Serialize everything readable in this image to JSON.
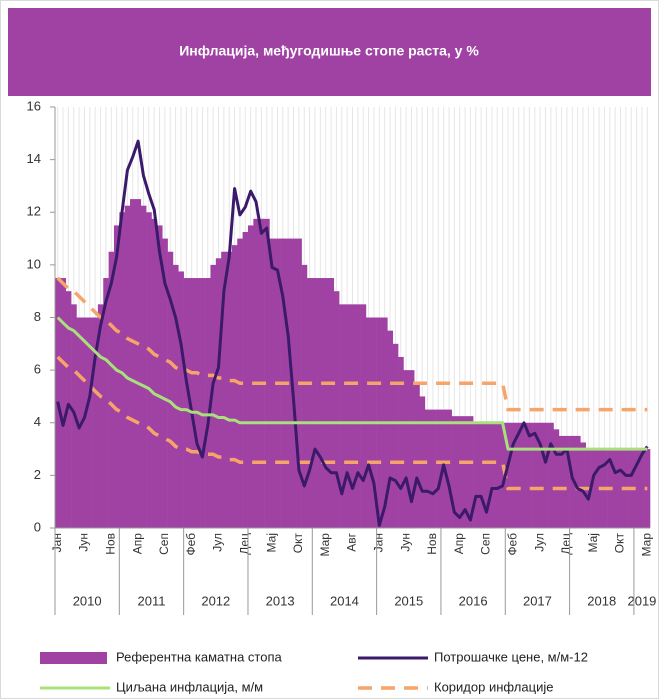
{
  "chart_data": {
    "type": "bar-line",
    "title": "Инфлација, међугодишње стопе раста, у %",
    "categories": [
      "Јан",
      null,
      null,
      null,
      null,
      "Јун",
      null,
      null,
      null,
      null,
      "Нов",
      null,
      null,
      null,
      null,
      "Апр",
      null,
      null,
      null,
      null,
      "Сеп",
      null,
      null,
      null,
      null,
      "Феб",
      null,
      null,
      null,
      null,
      "Јул",
      null,
      null,
      null,
      null,
      "Дец",
      null,
      null,
      null,
      null,
      "Мај",
      null,
      null,
      null,
      null,
      "Окт",
      null,
      null,
      null,
      null,
      "Мар",
      null,
      null,
      null,
      null,
      "Авг",
      null,
      null,
      null,
      null,
      "Јан",
      null,
      null,
      null,
      null,
      "Јун",
      null,
      null,
      null,
      null,
      "Нов",
      null,
      null,
      null,
      null,
      "Апр",
      null,
      null,
      null,
      null,
      "Сеп",
      null,
      null,
      null,
      null,
      "Феб",
      null,
      null,
      null,
      null,
      "Јул",
      null,
      null,
      null,
      null,
      "Дец",
      null,
      null,
      null,
      null,
      "Мај",
      null,
      null,
      null,
      null,
      "Окт",
      null,
      null,
      null,
      null,
      "Мар"
    ],
    "years": [
      "2010",
      "2011",
      "2012",
      "2013",
      "2014",
      "2015",
      "2016",
      "2017",
      "2018",
      "2019"
    ],
    "ylim": [
      0,
      16
    ],
    "yticks": [
      0,
      2,
      4,
      6,
      8,
      10,
      12,
      14,
      16
    ],
    "xgrid": true,
    "series": [
      {
        "name": "Референтна каматна стопа",
        "kind": "bar",
        "color": "#a042a3",
        "values": [
          9.5,
          9.5,
          9.0,
          8.5,
          8.0,
          8.0,
          8.0,
          8.0,
          8.5,
          9.5,
          10.5,
          11.5,
          12.0,
          12.25,
          12.5,
          12.5,
          12.25,
          12.0,
          11.75,
          11.5,
          11.0,
          10.5,
          10.0,
          9.75,
          9.5,
          9.5,
          9.5,
          9.5,
          9.5,
          10.0,
          10.25,
          10.5,
          10.5,
          10.75,
          11.0,
          11.25,
          11.5,
          11.75,
          11.75,
          11.75,
          11.0,
          11.0,
          11.0,
          11.0,
          11.0,
          11.0,
          10.0,
          9.5,
          9.5,
          9.5,
          9.5,
          9.5,
          9.0,
          8.5,
          8.5,
          8.5,
          8.5,
          8.5,
          8.0,
          8.0,
          8.0,
          8.0,
          7.5,
          7.0,
          6.5,
          6.0,
          6.0,
          5.5,
          5.0,
          4.5,
          4.5,
          4.5,
          4.5,
          4.5,
          4.25,
          4.25,
          4.25,
          4.25,
          4.0,
          4.0,
          4.0,
          4.0,
          4.0,
          4.0,
          4.0,
          4.0,
          4.0,
          4.0,
          4.0,
          4.0,
          4.0,
          4.0,
          4.0,
          3.75,
          3.5,
          3.5,
          3.5,
          3.5,
          3.25,
          3.0,
          3.0,
          3.0,
          3.0,
          3.0,
          3.0,
          3.0,
          3.0,
          3.0,
          3.0,
          3.0,
          3.0
        ]
      },
      {
        "name": "Потрошачке цене, м/м-12",
        "kind": "line",
        "color": "#3b1a6b",
        "values": [
          4.8,
          3.9,
          4.7,
          4.4,
          3.8,
          4.2,
          5.0,
          6.5,
          7.7,
          8.6,
          9.3,
          10.3,
          12.0,
          13.6,
          14.1,
          14.7,
          13.4,
          12.7,
          12.1,
          10.5,
          9.3,
          8.7,
          8.0,
          7.0,
          5.6,
          4.4,
          3.2,
          2.7,
          3.9,
          5.5,
          6.1,
          9.0,
          10.3,
          12.9,
          11.9,
          12.2,
          12.8,
          12.4,
          11.2,
          11.4,
          9.9,
          9.8,
          8.8,
          7.3,
          4.9,
          2.2,
          1.6,
          2.2,
          3.0,
          2.7,
          2.3,
          2.1,
          2.1,
          1.3,
          2.1,
          1.5,
          2.1,
          1.8,
          2.4,
          1.7,
          0.1,
          0.8,
          1.9,
          1.8,
          1.5,
          1.9,
          1.0,
          1.9,
          1.4,
          1.4,
          1.3,
          1.5,
          2.4,
          1.6,
          0.6,
          0.4,
          0.7,
          0.3,
          1.2,
          1.2,
          0.6,
          1.5,
          1.5,
          1.6,
          2.4,
          3.2,
          3.6,
          4.0,
          3.5,
          3.6,
          3.2,
          2.5,
          3.2,
          2.8,
          2.8,
          3.0,
          1.9,
          1.5,
          1.4,
          1.1,
          2.0,
          2.3,
          2.4,
          2.6,
          2.1,
          2.2,
          2.0,
          2.0,
          2.4,
          2.8,
          3.1
        ]
      },
      {
        "name": "Циљана инфлација, м/м",
        "kind": "line",
        "color": "#a9e07b",
        "values": [
          8.0,
          7.8,
          7.6,
          7.5,
          7.3,
          7.1,
          6.9,
          6.7,
          6.5,
          6.4,
          6.2,
          6.0,
          5.9,
          5.7,
          5.6,
          5.5,
          5.4,
          5.3,
          5.1,
          5.0,
          4.9,
          4.8,
          4.6,
          4.5,
          4.5,
          4.4,
          4.4,
          4.3,
          4.3,
          4.3,
          4.2,
          4.2,
          4.1,
          4.1,
          4.0,
          4.0,
          4.0,
          4.0,
          4.0,
          4.0,
          4.0,
          4.0,
          4.0,
          4.0,
          4.0,
          4.0,
          4.0,
          4.0,
          4.0,
          4.0,
          4.0,
          4.0,
          4.0,
          4.0,
          4.0,
          4.0,
          4.0,
          4.0,
          4.0,
          4.0,
          4.0,
          4.0,
          4.0,
          4.0,
          4.0,
          4.0,
          4.0,
          4.0,
          4.0,
          4.0,
          4.0,
          4.0,
          4.0,
          4.0,
          4.0,
          4.0,
          4.0,
          4.0,
          4.0,
          4.0,
          4.0,
          4.0,
          4.0,
          4.0,
          3.0,
          3.0,
          3.0,
          3.0,
          3.0,
          3.0,
          3.0,
          3.0,
          3.0,
          3.0,
          3.0,
          3.0,
          3.0,
          3.0,
          3.0,
          3.0,
          3.0,
          3.0,
          3.0,
          3.0,
          3.0,
          3.0,
          3.0,
          3.0,
          3.0,
          3.0,
          3.0
        ]
      },
      {
        "name": "Коридор инфлације",
        "kind": "band",
        "color": "#f5a46a",
        "upper": [
          9.5,
          9.3,
          9.1,
          9.0,
          8.8,
          8.6,
          8.4,
          8.2,
          8.0,
          7.9,
          7.7,
          7.5,
          7.4,
          7.2,
          7.1,
          7.0,
          6.9,
          6.8,
          6.6,
          6.5,
          6.4,
          6.3,
          6.1,
          6.0,
          6.0,
          5.9,
          5.9,
          5.8,
          5.8,
          5.8,
          5.7,
          5.7,
          5.6,
          5.6,
          5.5,
          5.5,
          5.5,
          5.5,
          5.5,
          5.5,
          5.5,
          5.5,
          5.5,
          5.5,
          5.5,
          5.5,
          5.5,
          5.5,
          5.5,
          5.5,
          5.5,
          5.5,
          5.5,
          5.5,
          5.5,
          5.5,
          5.5,
          5.5,
          5.5,
          5.5,
          5.5,
          5.5,
          5.5,
          5.5,
          5.5,
          5.5,
          5.5,
          5.5,
          5.5,
          5.5,
          5.5,
          5.5,
          5.5,
          5.5,
          5.5,
          5.5,
          5.5,
          5.5,
          5.5,
          5.5,
          5.5,
          5.5,
          5.5,
          5.5,
          4.5,
          4.5,
          4.5,
          4.5,
          4.5,
          4.5,
          4.5,
          4.5,
          4.5,
          4.5,
          4.5,
          4.5,
          4.5,
          4.5,
          4.5,
          4.5,
          4.5,
          4.5,
          4.5,
          4.5,
          4.5,
          4.5,
          4.5,
          4.5,
          4.5,
          4.5,
          4.5
        ],
        "lower": [
          6.5,
          6.3,
          6.1,
          6.0,
          5.8,
          5.6,
          5.4,
          5.2,
          5.0,
          4.9,
          4.7,
          4.5,
          4.4,
          4.2,
          4.1,
          4.0,
          3.9,
          3.8,
          3.6,
          3.5,
          3.4,
          3.3,
          3.1,
          3.0,
          3.0,
          2.9,
          2.9,
          2.8,
          2.8,
          2.8,
          2.7,
          2.7,
          2.6,
          2.6,
          2.5,
          2.5,
          2.5,
          2.5,
          2.5,
          2.5,
          2.5,
          2.5,
          2.5,
          2.5,
          2.5,
          2.5,
          2.5,
          2.5,
          2.5,
          2.5,
          2.5,
          2.5,
          2.5,
          2.5,
          2.5,
          2.5,
          2.5,
          2.5,
          2.5,
          2.5,
          2.5,
          2.5,
          2.5,
          2.5,
          2.5,
          2.5,
          2.5,
          2.5,
          2.5,
          2.5,
          2.5,
          2.5,
          2.5,
          2.5,
          2.5,
          2.5,
          2.5,
          2.5,
          2.5,
          2.5,
          2.5,
          2.5,
          2.5,
          2.5,
          1.5,
          1.5,
          1.5,
          1.5,
          1.5,
          1.5,
          1.5,
          1.5,
          1.5,
          1.5,
          1.5,
          1.5,
          1.5,
          1.5,
          1.5,
          1.5,
          1.5,
          1.5,
          1.5,
          1.5,
          1.5,
          1.5,
          1.5,
          1.5,
          1.5,
          1.5,
          1.5
        ]
      }
    ]
  }
}
